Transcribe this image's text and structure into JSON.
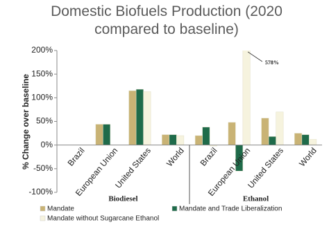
{
  "chart_data": {
    "type": "bar",
    "title": "Domestic Biofuels Production (2020 compared to baseline)",
    "y_label": "% Change over baseline",
    "categories": [
      "Brazil",
      "European Union",
      "United States",
      "World",
      "Brazil",
      "European Union",
      "United States",
      "World"
    ],
    "groups": [
      "Biodiesel",
      "Ethanol"
    ],
    "series": [
      {
        "name": "Mandate",
        "color": "#c9b375",
        "values": [
          0,
          44,
          115,
          22,
          20,
          48,
          57,
          25
        ]
      },
      {
        "name": "Mandate and Trade Liberalization",
        "color": "#1f6b4a",
        "values": [
          0,
          44,
          118,
          22,
          38,
          -55,
          18,
          22
        ]
      },
      {
        "name": "Mandate without Sugarcane Ethanol",
        "color": "#f6f3de",
        "values": [
          0,
          0,
          113,
          20,
          -2,
          578,
          70,
          12
        ],
        "value_labels": [
          null,
          null,
          null,
          null,
          null,
          "578%",
          null,
          null
        ]
      }
    ],
    "ylim": [
      -100,
      200
    ],
    "yticks": [
      {
        "value": -100,
        "label": "-100%"
      },
      {
        "value": -50,
        "label": "-50%"
      },
      {
        "value": 0,
        "label": "0%"
      },
      {
        "value": 50,
        "label": "50%"
      },
      {
        "value": 100,
        "label": "100%"
      },
      {
        "value": 150,
        "label": "150%"
      },
      {
        "value": 200,
        "label": "200%"
      }
    ]
  }
}
